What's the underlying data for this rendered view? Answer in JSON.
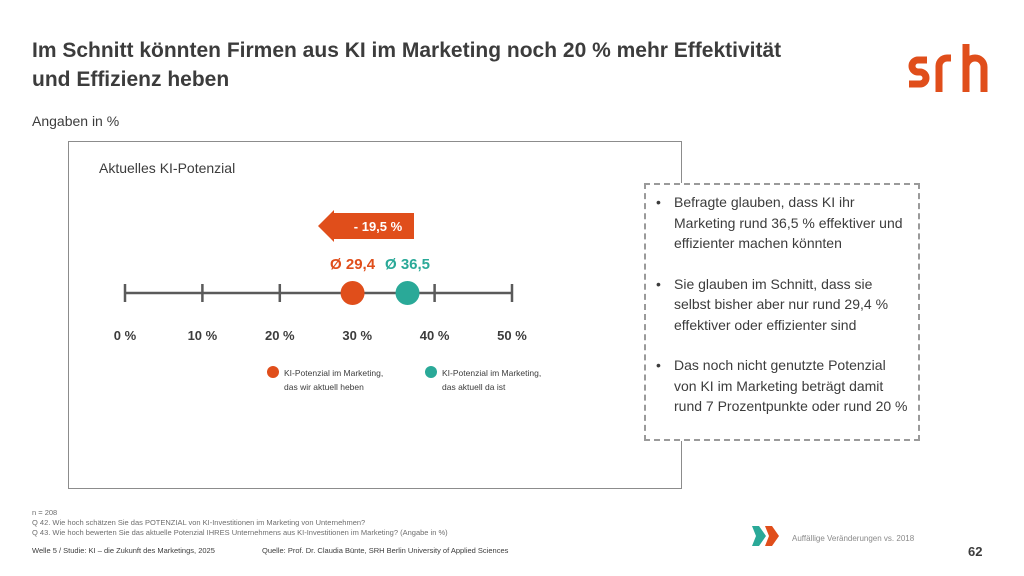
{
  "header": {
    "title": "Im Schnitt könnten Firmen aus KI im Marketing noch 20 % mehr Effektivität und Effizienz heben",
    "subtitle": "Angaben in %",
    "logo_text": "srh"
  },
  "colors": {
    "orange": "#e04e1b",
    "teal": "#2aa998",
    "axis": "#5a5a5a"
  },
  "chart_data": {
    "type": "scatter",
    "title": "Aktuelles KI-Potenzial",
    "xlim": [
      0,
      50
    ],
    "x_ticks": [
      0,
      10,
      20,
      30,
      40,
      50
    ],
    "tick_labels": [
      "0 %",
      "10 %",
      "20 %",
      "30 %",
      "40 %",
      "50 %"
    ],
    "series": [
      {
        "name": "KI-Potenzial im Marketing, das wir aktuell heben",
        "legend_lines": [
          "KI-Potenzial im Marketing,",
          "das wir aktuell heben"
        ],
        "value": 29.4,
        "label": "Ø 29,4",
        "color": "#e04e1b"
      },
      {
        "name": "KI-Potenzial im Marketing, das aktuell da ist",
        "legend_lines": [
          "KI-Potenzial im Marketing,",
          "das aktuell da ist"
        ],
        "value": 36.5,
        "label": "Ø 36,5",
        "color": "#2aa998"
      }
    ],
    "annotation": {
      "text": "- 19,5 %",
      "from": 36.5,
      "to": 29.4
    },
    "legend_position": "bottom"
  },
  "callout": {
    "bullets": [
      "Befragte glauben, dass KI ihr Marketing rund 36,5 % effektiver und effizienter machen könnten",
      "Sie glauben im Schnitt, dass sie selbst bisher aber nur rund 29,4 % effektiver oder effizienter sind",
      "Das noch nicht genutzte Potenzial von KI im Marketing beträgt damit rund 7 Prozentpunkte oder rund 20 %"
    ]
  },
  "footnotes": {
    "n": "n = 208",
    "q42": "Q 42. Wie hoch schätzen Sie das POTENZIAL von KI-Investitionen im Marketing von Unternehmen?",
    "q43": "Q 43. Wie hoch bewerten Sie das aktuelle Potenzial IHRES Unternehmens aus KI-Investitionen im Marketing? (Angabe in %)"
  },
  "footer": {
    "study": "Welle 5 / Studie: KI – die Zukunft des Marketings, 2025",
    "source": "Quelle: Prof. Dr. Claudia Bünte, SRH Berlin University of Applied Sciences",
    "changes_label": "Auffällige Veränderungen vs. 2018",
    "page_number": "62"
  }
}
